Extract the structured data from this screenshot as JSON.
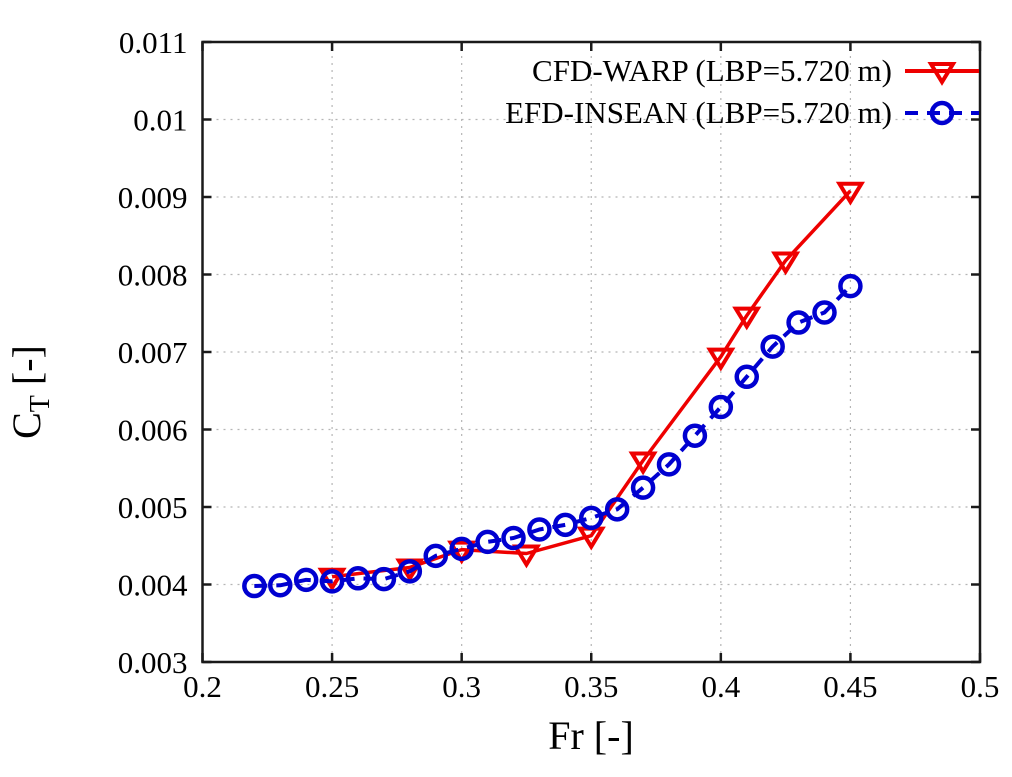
{
  "chart_data": {
    "type": "line",
    "title": "",
    "xlabel": "Fr [-]",
    "ylabel": "C_T [-]",
    "ylabel_parts": {
      "base": "C",
      "sub": "T",
      "rest": " [-]"
    },
    "xlim": [
      0.2,
      0.5
    ],
    "ylim": [
      0.003,
      0.011
    ],
    "xticks": [
      0.2,
      0.25,
      0.3,
      0.35,
      0.4,
      0.45,
      0.5
    ],
    "xtick_labels": [
      "0.2",
      "0.25",
      "0.3",
      "0.35",
      "0.4",
      "0.45",
      "0.5"
    ],
    "yticks": [
      0.003,
      0.004,
      0.005,
      0.006,
      0.007,
      0.008,
      0.009,
      0.01,
      0.011
    ],
    "ytick_labels": [
      "0.003",
      "0.004",
      "0.005",
      "0.006",
      "0.007",
      "0.008",
      "0.009",
      "0.01",
      "0.011"
    ],
    "grid": true,
    "grid_style": "dotted",
    "legend_position": "top-right-inside",
    "series": [
      {
        "name": "CFD-WARP (LBP=5.720 m)",
        "color": "#ee0000",
        "line_style": "solid",
        "marker": "triangle-down-open",
        "x": [
          0.25,
          0.28,
          0.3,
          0.325,
          0.35,
          0.37,
          0.4,
          0.41,
          0.425,
          0.45
        ],
        "y": [
          0.0041,
          0.00422,
          0.00445,
          0.0044,
          0.00463,
          0.0056,
          0.00694,
          0.00747,
          0.00818,
          0.00908
        ]
      },
      {
        "name": "EFD-INSEAN (LBP=5.720 m)",
        "color": "#0000d0",
        "line_style": "dashed",
        "marker": "circle-open",
        "x": [
          0.22,
          0.23,
          0.24,
          0.25,
          0.26,
          0.27,
          0.28,
          0.29,
          0.3,
          0.31,
          0.32,
          0.33,
          0.34,
          0.35,
          0.36,
          0.37,
          0.38,
          0.39,
          0.4,
          0.41,
          0.42,
          0.43,
          0.44,
          0.45
        ],
        "y": [
          0.00398,
          0.00399,
          0.00406,
          0.00404,
          0.00408,
          0.00407,
          0.00417,
          0.00437,
          0.00446,
          0.00455,
          0.0046,
          0.00471,
          0.00477,
          0.00486,
          0.00497,
          0.00525,
          0.00555,
          0.00592,
          0.00629,
          0.00668,
          0.00707,
          0.00738,
          0.00751,
          0.00785
        ]
      }
    ],
    "colors": {
      "border": "#1a1a1a",
      "grid": "#b5b5b5",
      "tick_text": "#000000"
    }
  }
}
